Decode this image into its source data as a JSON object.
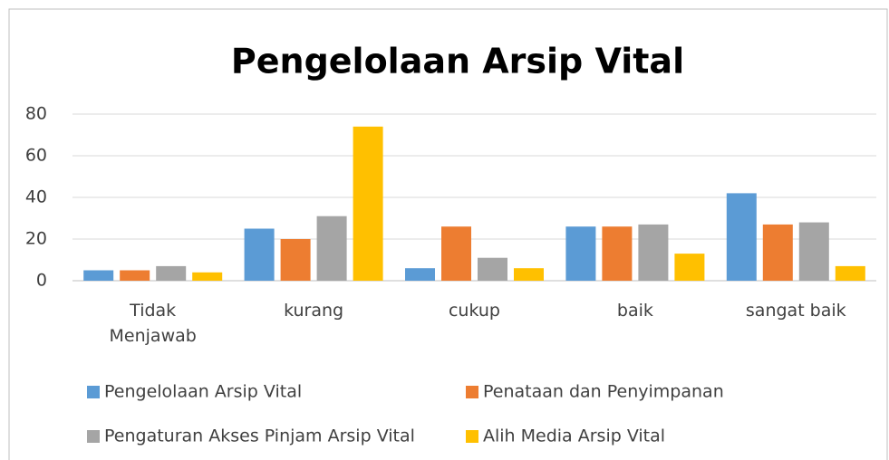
{
  "chart_data": {
    "type": "bar",
    "title": "Pengelolaan Arsip Vital",
    "categories": [
      "Tidak Menjawab",
      "kurang",
      "cukup",
      "baik",
      "sangat baik"
    ],
    "series": [
      {
        "name": "Pengelolaan Arsip Vital",
        "color": "#5b9bd5",
        "values": [
          5,
          25,
          6,
          26,
          42
        ]
      },
      {
        "name": "Penataan dan Penyimpanan",
        "color": "#ed7d31",
        "values": [
          5,
          20,
          26,
          26,
          27
        ]
      },
      {
        "name": "Pengaturan Akses Pinjam Arsip Vital",
        "color": "#a5a5a5",
        "values": [
          7,
          31,
          11,
          27,
          28
        ]
      },
      {
        "name": "Alih Media Arsip Vital",
        "color": "#ffc000",
        "values": [
          4,
          74,
          6,
          13,
          7
        ]
      }
    ],
    "ylim": [
      0,
      80
    ],
    "yticks": [
      0,
      20,
      40,
      60,
      80
    ],
    "grid": true,
    "legend": "bottom"
  }
}
